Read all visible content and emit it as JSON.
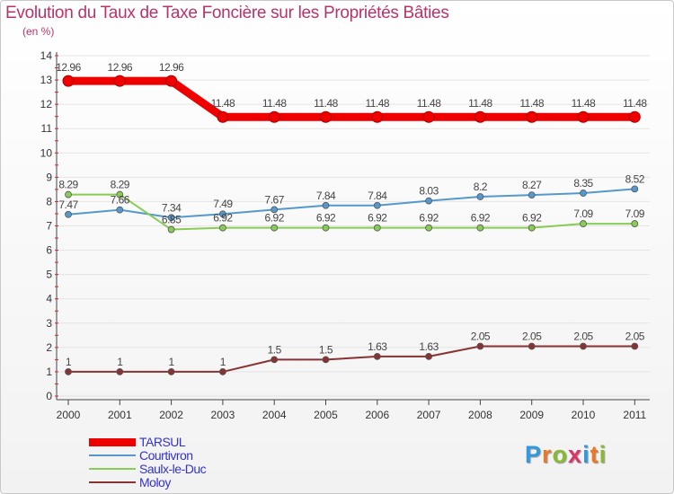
{
  "chart_data": {
    "type": "line",
    "title": "Evolution du Taux de Taxe Foncière sur les Propriétés Bâties",
    "subtitle": "(en %)",
    "categories": [
      "2000",
      "2001",
      "2002",
      "2003",
      "2004",
      "2005",
      "2006",
      "2007",
      "2008",
      "2009",
      "2010",
      "2011"
    ],
    "ylim": [
      0,
      14
    ],
    "yticks": [
      0,
      1,
      2,
      3,
      4,
      5,
      6,
      7,
      8,
      9,
      10,
      11,
      12,
      13,
      14
    ],
    "grid": "horizontal",
    "legend_position": "bottom-left",
    "series": [
      {
        "name": "TARSUL",
        "color": "#ee0000",
        "weight": "thick",
        "values": [
          12.96,
          12.96,
          12.96,
          11.48,
          11.48,
          11.48,
          11.48,
          11.48,
          11.48,
          11.48,
          11.48,
          11.48
        ],
        "labels": [
          "12.96",
          "12.96",
          "12.96",
          "11.48",
          "11.48",
          "11.48",
          "11.48",
          "11.48",
          "11.48",
          "11.48",
          "11.48",
          "11.48"
        ]
      },
      {
        "name": "Courtivron",
        "color": "#5599cc",
        "weight": "thin",
        "values": [
          7.47,
          7.66,
          7.34,
          7.49,
          7.67,
          7.84,
          7.84,
          8.03,
          8.2,
          8.27,
          8.35,
          8.52
        ],
        "labels": [
          "7.47",
          "7.66",
          "7.34",
          "7.49",
          "7.67",
          "7.84",
          "7.84",
          "8.03",
          "8.2",
          "8.27",
          "8.35",
          "8.52"
        ]
      },
      {
        "name": "Saulx-le-Duc",
        "color": "#88cc55",
        "weight": "thin",
        "values": [
          8.29,
          8.29,
          6.85,
          6.92,
          6.92,
          6.92,
          6.92,
          6.92,
          6.92,
          6.92,
          7.09,
          7.09
        ],
        "labels": [
          "8.29",
          "8.29",
          "6.85",
          "6.92",
          "6.92",
          "6.92",
          "6.92",
          "6.92",
          "6.92",
          "6.92",
          "7.09",
          "7.09"
        ]
      },
      {
        "name": "Moloy",
        "color": "#883333",
        "weight": "thin",
        "values": [
          1,
          1,
          1,
          1,
          1.5,
          1.5,
          1.63,
          1.63,
          2.05,
          2.05,
          2.05,
          2.05
        ],
        "labels": [
          "1",
          "1",
          "1",
          "1",
          "1.5",
          "1.5",
          "1.63",
          "1.63",
          "2.05",
          "2.05",
          "2.05",
          "2.05"
        ]
      }
    ]
  },
  "brand": {
    "letters": [
      "P",
      "r",
      "o",
      "x",
      "i",
      "t",
      "i"
    ],
    "colors": [
      "#3399dd",
      "#ee7722",
      "#88bb33",
      "#dd3366",
      "#3399dd",
      "#ee7722",
      "#88bb33"
    ]
  }
}
